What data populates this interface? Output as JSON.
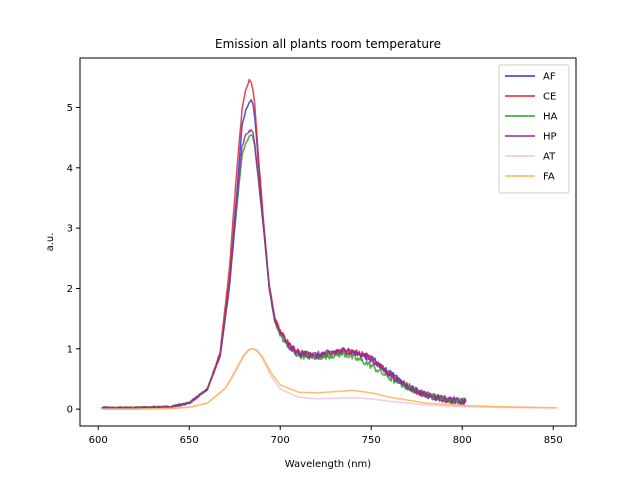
{
  "chart_data": {
    "type": "line",
    "title": "Emission all plants room temperature",
    "xlabel": "Wavelength (nm)",
    "ylabel": "a.u.",
    "xlim": [
      590,
      862.5
    ],
    "ylim": [
      -0.28,
      5.82
    ],
    "xticks": [
      600,
      650,
      700,
      750,
      800,
      850
    ],
    "yticks": [
      0,
      1,
      2,
      3,
      4,
      5
    ],
    "legend_position": "top-right",
    "grid": false,
    "series": [
      {
        "name": "AF",
        "color": "#3333cc",
        "noise": 0.035,
        "x": [
          602,
          620,
          640,
          650,
          660,
          667,
          672,
          676,
          679,
          681,
          683,
          684,
          685,
          686,
          688,
          691,
          694,
          697,
          700,
          705,
          710,
          715,
          720,
          725,
          730,
          735,
          740,
          745,
          750,
          755,
          760,
          765,
          770,
          775,
          780,
          785,
          790,
          795,
          800,
          802
        ],
        "y": [
          0.02,
          0.02,
          0.04,
          0.1,
          0.33,
          0.9,
          2.1,
          3.5,
          4.7,
          4.95,
          5.1,
          5.12,
          5.05,
          4.85,
          4.1,
          3.0,
          2.0,
          1.5,
          1.28,
          1.05,
          0.93,
          0.9,
          0.88,
          0.9,
          0.93,
          0.97,
          0.95,
          0.9,
          0.84,
          0.72,
          0.6,
          0.48,
          0.38,
          0.3,
          0.24,
          0.2,
          0.17,
          0.15,
          0.13,
          0.12
        ]
      },
      {
        "name": "CE",
        "color": "#e0262b",
        "noise": 0.035,
        "x": [
          602,
          620,
          640,
          650,
          660,
          667,
          672,
          676,
          679,
          681,
          683,
          684,
          685,
          686,
          688,
          691,
          694,
          697,
          700,
          705,
          710,
          715,
          720,
          725,
          730,
          735,
          740,
          745,
          750,
          755,
          760,
          765,
          770,
          775,
          780,
          785,
          790,
          795,
          800,
          802
        ],
        "y": [
          0.02,
          0.02,
          0.04,
          0.1,
          0.33,
          0.95,
          2.3,
          3.9,
          4.95,
          5.3,
          5.45,
          5.42,
          5.3,
          5.05,
          4.2,
          3.05,
          2.05,
          1.52,
          1.3,
          1.05,
          0.93,
          0.9,
          0.88,
          0.9,
          0.93,
          0.97,
          0.95,
          0.9,
          0.84,
          0.72,
          0.6,
          0.48,
          0.38,
          0.3,
          0.24,
          0.2,
          0.17,
          0.15,
          0.13,
          0.12
        ]
      },
      {
        "name": "HA",
        "color": "#2ca02c",
        "noise": 0.035,
        "x": [
          602,
          620,
          640,
          650,
          660,
          667,
          672,
          676,
          679,
          681,
          683,
          684,
          685,
          686,
          688,
          691,
          694,
          697,
          700,
          705,
          710,
          715,
          720,
          725,
          730,
          735,
          740,
          745,
          750,
          755,
          760,
          765,
          770,
          775,
          780,
          785,
          790,
          795,
          800,
          802
        ],
        "y": [
          0.02,
          0.02,
          0.04,
          0.1,
          0.33,
          0.88,
          2.0,
          3.3,
          4.2,
          4.4,
          4.52,
          4.55,
          4.5,
          4.35,
          3.8,
          2.95,
          2.0,
          1.45,
          1.22,
          1.0,
          0.9,
          0.87,
          0.86,
          0.88,
          0.9,
          0.92,
          0.85,
          0.8,
          0.72,
          0.62,
          0.52,
          0.44,
          0.36,
          0.3,
          0.24,
          0.2,
          0.17,
          0.15,
          0.13,
          0.12
        ]
      },
      {
        "name": "HP",
        "color": "#8e2c9e",
        "noise": 0.035,
        "x": [
          602,
          620,
          640,
          650,
          660,
          667,
          672,
          676,
          679,
          681,
          683,
          684,
          685,
          686,
          688,
          691,
          694,
          697,
          700,
          705,
          710,
          715,
          720,
          725,
          730,
          735,
          740,
          745,
          750,
          755,
          760,
          765,
          770,
          775,
          780,
          785,
          790,
          795,
          800,
          802
        ],
        "y": [
          0.02,
          0.02,
          0.04,
          0.1,
          0.33,
          0.88,
          2.0,
          3.4,
          4.35,
          4.55,
          4.6,
          4.62,
          4.58,
          4.4,
          3.85,
          2.95,
          2.0,
          1.45,
          1.25,
          1.02,
          0.92,
          0.9,
          0.9,
          0.92,
          0.95,
          0.96,
          0.94,
          0.9,
          0.82,
          0.7,
          0.58,
          0.47,
          0.38,
          0.3,
          0.25,
          0.2,
          0.17,
          0.15,
          0.13,
          0.12
        ]
      },
      {
        "name": "AT",
        "color": "#f7bfd6",
        "noise": 0,
        "x": [
          602,
          620,
          640,
          650,
          660,
          670,
          675,
          680,
          683,
          685,
          687,
          690,
          695,
          700,
          710,
          720,
          730,
          740,
          750,
          760,
          780,
          800,
          820,
          840,
          852
        ],
        "y": [
          0.0,
          0.0,
          0.01,
          0.03,
          0.1,
          0.35,
          0.6,
          0.88,
          0.98,
          1.0,
          0.97,
          0.85,
          0.55,
          0.33,
          0.2,
          0.17,
          0.18,
          0.19,
          0.17,
          0.13,
          0.07,
          0.04,
          0.03,
          0.02,
          0.02
        ]
      },
      {
        "name": "FA",
        "color": "#ffb24d",
        "noise": 0,
        "x": [
          602,
          620,
          640,
          650,
          660,
          670,
          675,
          680,
          683,
          685,
          687,
          690,
          695,
          700,
          710,
          720,
          730,
          740,
          750,
          760,
          780,
          800,
          820,
          840,
          852
        ],
        "y": [
          0.0,
          0.0,
          0.01,
          0.03,
          0.1,
          0.35,
          0.62,
          0.9,
          0.99,
          1.0,
          0.98,
          0.88,
          0.6,
          0.4,
          0.28,
          0.27,
          0.29,
          0.31,
          0.27,
          0.2,
          0.1,
          0.06,
          0.04,
          0.03,
          0.02
        ]
      }
    ]
  }
}
